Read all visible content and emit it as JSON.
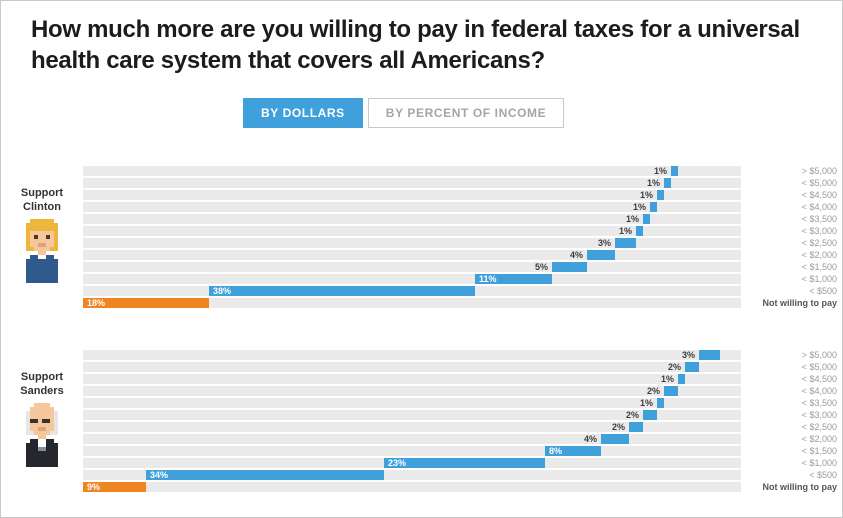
{
  "title": "How much more are you willing to pay in federal taxes for a universal health care system that covers all Americans?",
  "toggle": {
    "by_dollars": "BY DOLLARS",
    "by_percent": "BY PERCENT OF INCOME",
    "active": "BY DOLLARS"
  },
  "colors": {
    "bar_blue": "#3fa0db",
    "bar_orange": "#ee8521",
    "row_stripe": "#eaeaea",
    "active_button": "#3fa0db"
  },
  "icons": {
    "clinton_avatar": "pixel-art-clinton-figure",
    "sanders_avatar": "pixel-art-sanders-figure"
  },
  "chart_data": [
    {
      "type": "bar",
      "orientation": "horizontal-waterfall",
      "group": "Support Clinton",
      "unit": "%",
      "categories": [
        "> $5,000",
        "< $5,000",
        "< $4,500",
        "< $4,000",
        "< $3,500",
        "< $3,000",
        "< $2,500",
        "< $2,000",
        "< $1,500",
        "< $1,000",
        "< $500",
        "Not willing to pay"
      ],
      "values": [
        1,
        1,
        1,
        1,
        1,
        1,
        3,
        4,
        5,
        11,
        38,
        18
      ],
      "highlight_category": "Not willing to pay"
    },
    {
      "type": "bar",
      "orientation": "horizontal-waterfall",
      "group": "Support Sanders",
      "unit": "%",
      "categories": [
        "> $5,000",
        "< $5,000",
        "< $4,500",
        "< $4,000",
        "< $3,500",
        "< $3,000",
        "< $2,500",
        "< $2,000",
        "< $1,500",
        "< $1,000",
        "< $500",
        "Not willing to pay"
      ],
      "values": [
        3,
        2,
        1,
        2,
        1,
        2,
        2,
        4,
        8,
        23,
        34,
        9
      ],
      "highlight_category": "Not willing to pay"
    }
  ]
}
